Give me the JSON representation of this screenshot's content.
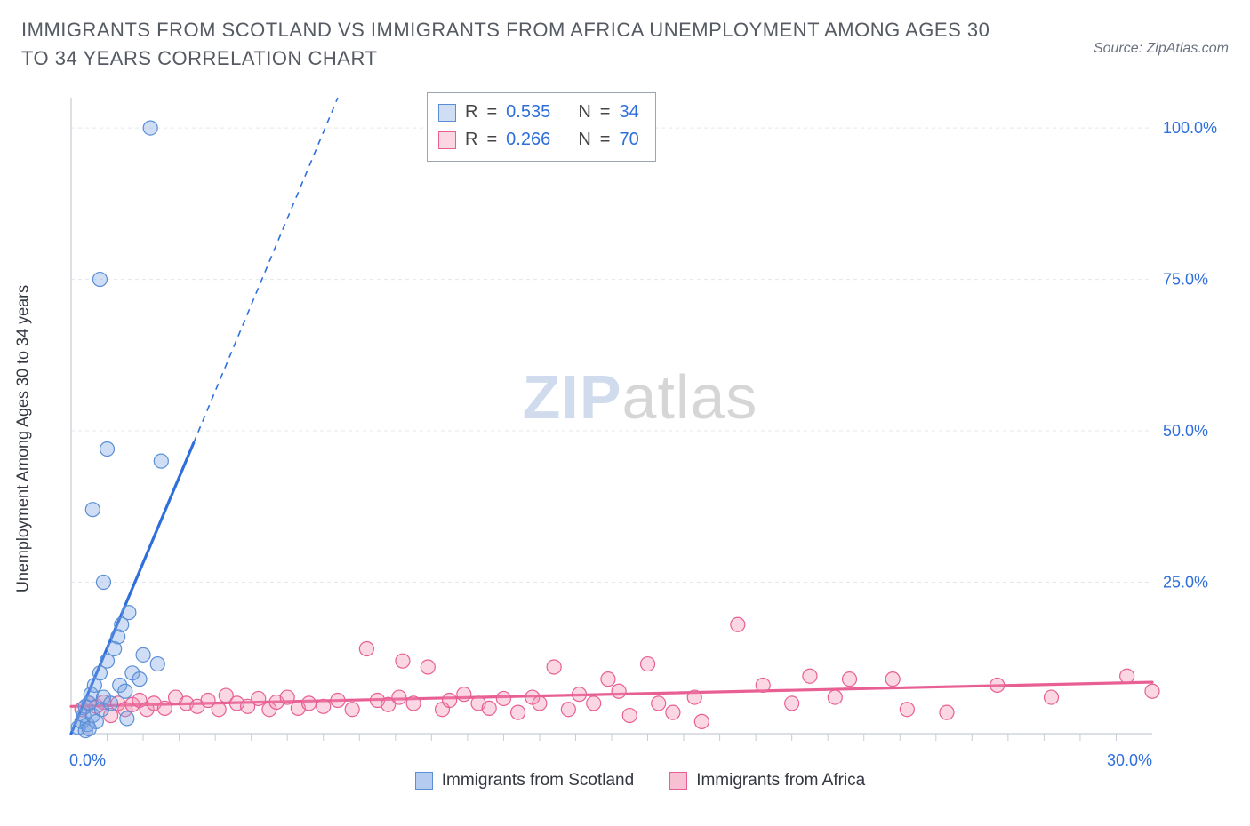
{
  "title": "IMMIGRANTS FROM SCOTLAND VS IMMIGRANTS FROM AFRICA UNEMPLOYMENT AMONG AGES 30 TO 34 YEARS CORRELATION CHART",
  "source_label": "Source: ZipAtlas.com",
  "y_axis_label": "Unemployment Among Ages 30 to 34 years",
  "watermark": {
    "part1": "ZIP",
    "part2": "atlas"
  },
  "chart": {
    "type": "scatter",
    "background_color": "#ffffff",
    "plot_border_color": "#c7ccd6",
    "xlim": [
      0,
      30
    ],
    "ylim": [
      0,
      105
    ],
    "x_ticks": {
      "major": [
        0,
        30
      ],
      "minor_step": 1,
      "minor_range": [
        1,
        29
      ]
    },
    "y_ticks": {
      "values": [
        25,
        50,
        75,
        100
      ],
      "labels": [
        "25.0%",
        "50.0%",
        "75.0%",
        "100.0%"
      ]
    },
    "x_tick_labels": {
      "0": "0.0%",
      "30": "30.0%"
    },
    "x_tick_label_color": "#2e6fdc",
    "y_tick_label_color": "#2e6fdc",
    "tick_label_fontsize": 18,
    "grid_color": "#e4e7ec",
    "grid_dash": "4 4",
    "marker_radius": 8,
    "marker_stroke_width": 1.2,
    "trend_solid_width": 3.2,
    "trend_dash_width": 1.6,
    "trend_dash_pattern": "7 6",
    "series": [
      {
        "id": "scotland",
        "label": "Immigrants from Scotland",
        "fill": "rgba(120,160,225,0.35)",
        "stroke": "#5a8fd6",
        "line_color": "#2e6fdc",
        "r_value": "0.535",
        "n_value": "34",
        "points": [
          [
            0.2,
            1.0
          ],
          [
            0.3,
            2.0
          ],
          [
            0.35,
            3.0
          ],
          [
            0.4,
            4.5
          ],
          [
            0.45,
            1.5
          ],
          [
            0.5,
            5.0
          ],
          [
            0.55,
            6.5
          ],
          [
            0.6,
            3.0
          ],
          [
            0.65,
            8.0
          ],
          [
            0.7,
            2.0
          ],
          [
            0.8,
            10.0
          ],
          [
            0.85,
            4.0
          ],
          [
            0.9,
            6.0
          ],
          [
            1.0,
            12.0
          ],
          [
            1.1,
            5.0
          ],
          [
            1.2,
            14.0
          ],
          [
            1.3,
            16.0
          ],
          [
            1.35,
            8.0
          ],
          [
            1.4,
            18.0
          ],
          [
            1.5,
            7.0
          ],
          [
            1.55,
            2.5
          ],
          [
            1.7,
            10.0
          ],
          [
            1.9,
            9.0
          ],
          [
            2.0,
            13.0
          ],
          [
            2.4,
            11.5
          ],
          [
            0.9,
            25.0
          ],
          [
            0.6,
            37.0
          ],
          [
            1.0,
            47.0
          ],
          [
            2.5,
            45.0
          ],
          [
            1.6,
            20.0
          ],
          [
            0.8,
            75.0
          ],
          [
            2.2,
            100.0
          ],
          [
            0.4,
            0.5
          ],
          [
            0.5,
            0.8
          ]
        ],
        "trend": {
          "p1": [
            0,
            0
          ],
          "p2_solid": [
            3.4,
            48
          ],
          "p2_dash": [
            7.4,
            105
          ]
        }
      },
      {
        "id": "africa",
        "label": "Immigrants from Africa",
        "fill": "rgba(240,140,175,0.35)",
        "stroke": "#e85f94",
        "line_color": "#e85f94",
        "r_value": "0.266",
        "n_value": "70",
        "points": [
          [
            0.3,
            4.0
          ],
          [
            0.5,
            5.0
          ],
          [
            0.7,
            4.5
          ],
          [
            0.9,
            5.2
          ],
          [
            1.1,
            3.0
          ],
          [
            1.3,
            5.0
          ],
          [
            1.5,
            4.0
          ],
          [
            1.7,
            4.8
          ],
          [
            1.9,
            5.5
          ],
          [
            2.1,
            4.0
          ],
          [
            2.3,
            5.0
          ],
          [
            2.6,
            4.2
          ],
          [
            2.9,
            6.0
          ],
          [
            3.2,
            5.0
          ],
          [
            3.5,
            4.5
          ],
          [
            3.8,
            5.5
          ],
          [
            4.1,
            4.0
          ],
          [
            4.3,
            6.3
          ],
          [
            4.6,
            5.0
          ],
          [
            4.9,
            4.5
          ],
          [
            5.2,
            5.8
          ],
          [
            5.5,
            4.0
          ],
          [
            5.7,
            5.2
          ],
          [
            6.0,
            6.0
          ],
          [
            6.3,
            4.2
          ],
          [
            6.6,
            5.0
          ],
          [
            7.0,
            4.5
          ],
          [
            7.4,
            5.5
          ],
          [
            7.8,
            4.0
          ],
          [
            8.2,
            14.0
          ],
          [
            8.5,
            5.5
          ],
          [
            8.8,
            4.8
          ],
          [
            9.1,
            6.0
          ],
          [
            9.2,
            12.0
          ],
          [
            9.5,
            5.0
          ],
          [
            9.9,
            11.0
          ],
          [
            10.3,
            4.0
          ],
          [
            10.5,
            5.5
          ],
          [
            10.9,
            6.5
          ],
          [
            11.3,
            5.0
          ],
          [
            11.6,
            4.2
          ],
          [
            12.0,
            5.8
          ],
          [
            12.4,
            3.5
          ],
          [
            12.8,
            6.0
          ],
          [
            13.0,
            5.0
          ],
          [
            13.4,
            11.0
          ],
          [
            13.8,
            4.0
          ],
          [
            14.1,
            6.5
          ],
          [
            14.5,
            5.0
          ],
          [
            14.9,
            9.0
          ],
          [
            15.2,
            7.0
          ],
          [
            15.5,
            3.0
          ],
          [
            16.0,
            11.5
          ],
          [
            16.3,
            5.0
          ],
          [
            16.7,
            3.5
          ],
          [
            17.3,
            6.0
          ],
          [
            17.5,
            2.0
          ],
          [
            18.5,
            18.0
          ],
          [
            19.2,
            8.0
          ],
          [
            20.0,
            5.0
          ],
          [
            20.5,
            9.5
          ],
          [
            21.2,
            6.0
          ],
          [
            21.6,
            9.0
          ],
          [
            22.8,
            9.0
          ],
          [
            23.2,
            4.0
          ],
          [
            24.3,
            3.5
          ],
          [
            25.7,
            8.0
          ],
          [
            27.2,
            6.0
          ],
          [
            29.3,
            9.5
          ],
          [
            30.0,
            7.0
          ]
        ],
        "trend": {
          "p1": [
            0,
            4.5
          ],
          "p2_solid": [
            30,
            8.5
          ],
          "p2_dash": [
            30,
            8.5
          ]
        }
      }
    ]
  },
  "stats_box": {
    "r_label": "R",
    "n_label": "N",
    "eq": "="
  },
  "legend": {
    "items": [
      {
        "label": "Immigrants from Scotland",
        "fill": "rgba(120,160,225,0.55)",
        "stroke": "#5a8fd6"
      },
      {
        "label": "Immigrants from Africa",
        "fill": "rgba(240,140,175,0.55)",
        "stroke": "#e85f94"
      }
    ]
  }
}
